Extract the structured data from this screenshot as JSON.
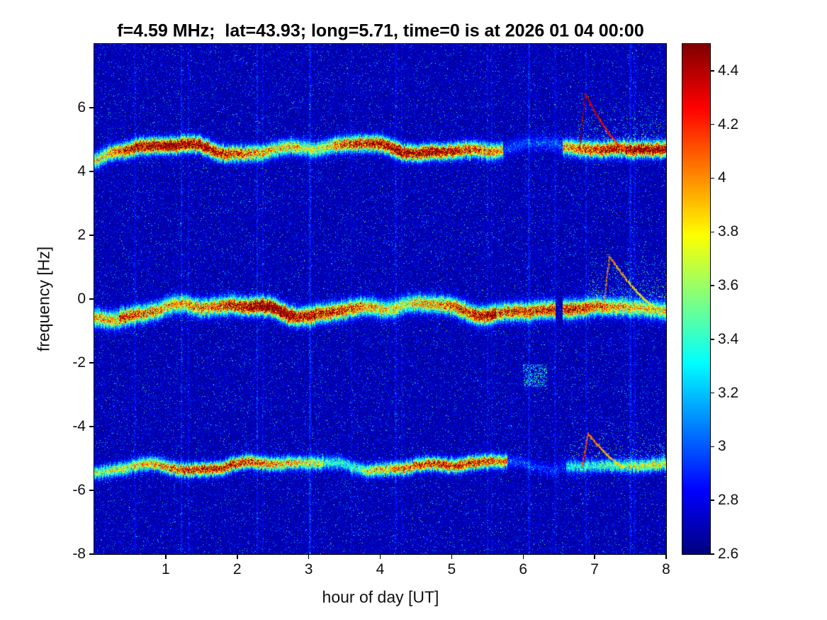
{
  "chart_data": {
    "type": "heatmap",
    "title": "f=4.59 MHz;  lat=43.93; long=5.71, time=0 is at 2026 01 04 00:00",
    "xlabel": "hour of day [UT]",
    "ylabel": "frequency [Hz]",
    "xlim": [
      0,
      8
    ],
    "ylim": [
      -8,
      8
    ],
    "grid": false,
    "xticks": {
      "values": [
        1,
        2,
        3,
        4,
        5,
        6,
        7,
        8
      ],
      "labels": [
        "1",
        "2",
        "3",
        "4",
        "5",
        "6",
        "7",
        "8"
      ]
    },
    "yticks": {
      "values": [
        6,
        4,
        2,
        0,
        -2,
        -4,
        -6,
        -8
      ],
      "labels": [
        "6",
        "4",
        "2",
        "0",
        "-2",
        "-4",
        "-6",
        "-8"
      ]
    },
    "colorbar": {
      "min": 2.6,
      "max": 4.5,
      "colormap": "jet",
      "position": "right",
      "tick_values": [
        4.4,
        4.2,
        4.0,
        3.8,
        3.6,
        3.4,
        3.2,
        3.0,
        2.8,
        2.6
      ],
      "tick_labels": [
        "4.4",
        "4.2",
        "4",
        "3.8",
        "3.6",
        "3.4",
        "3.2",
        "3",
        "2.8",
        "2.6"
      ]
    },
    "noise_floor": 2.62,
    "bands": [
      {
        "center": 4.72,
        "sigma": 0.15,
        "wiggle": 0.24,
        "start_dip": 0.45,
        "segments": [
          {
            "from": 0,
            "to": 0.4,
            "amp": 1.5
          },
          {
            "from": 0.4,
            "to": 2.9,
            "amp": 1.9
          },
          {
            "from": 2.9,
            "to": 3.35,
            "amp": 1.5
          },
          {
            "from": 3.35,
            "to": 5.72,
            "amp": 1.85
          },
          {
            "from": 5.72,
            "to": 6.55,
            "amp": 0.4
          },
          {
            "from": 6.55,
            "to": 8,
            "amp": 1.8
          }
        ],
        "plume": {
          "from": 6.75,
          "to": 8,
          "top": 6.4,
          "density": 0.5
        },
        "spike": {
          "t": 6.78,
          "top": 6.45,
          "tail": 0.55,
          "v": 4.35
        }
      },
      {
        "center": -0.32,
        "sigma": 0.17,
        "wiggle": 0.27,
        "start_dip": 0.2,
        "segments": [
          {
            "from": 0,
            "to": 0.35,
            "amp": 1.3
          },
          {
            "from": 0.35,
            "to": 2.8,
            "amp": 2.05
          },
          {
            "from": 2.8,
            "to": 4.45,
            "amp": 1.7
          },
          {
            "from": 4.45,
            "to": 5.62,
            "amp": 2.0
          },
          {
            "from": 5.62,
            "to": 6.45,
            "amp": 1.45
          },
          {
            "from": 6.55,
            "to": 8,
            "amp": 1.8
          }
        ],
        "plume": {
          "from": 6.9,
          "to": 8,
          "top": 1.9,
          "density": 0.55
        },
        "spike": {
          "t": 7.12,
          "top": 1.35,
          "tail": 0.65,
          "v": 3.95
        }
      },
      {
        "center": -5.22,
        "sigma": 0.13,
        "wiggle": 0.2,
        "start_dip": 0.35,
        "segments": [
          {
            "from": 0,
            "to": 3.2,
            "amp": 1.55
          },
          {
            "from": 3.2,
            "to": 3.75,
            "amp": 1.15
          },
          {
            "from": 3.75,
            "to": 5.78,
            "amp": 1.5
          },
          {
            "from": 5.78,
            "to": 6.6,
            "amp": 0.3
          },
          {
            "from": 6.6,
            "to": 8,
            "amp": 1.05
          }
        ],
        "plume": {
          "from": 6.65,
          "to": 8,
          "top": -3.55,
          "density": 0.4
        },
        "spike": {
          "t": 6.82,
          "top": -4.2,
          "tail": 0.5,
          "v": 4.05
        }
      }
    ],
    "vlines": [
      {
        "t": 0.57,
        "s": 0.1
      },
      {
        "t": 1.22,
        "s": 0.16
      },
      {
        "t": 1.32,
        "s": 0.1
      },
      {
        "t": 2.28,
        "s": 0.17
      },
      {
        "t": 2.36,
        "s": 0.1
      },
      {
        "t": 3.02,
        "s": 0.18
      },
      {
        "t": 3.6,
        "s": 0.08
      },
      {
        "t": 4.22,
        "s": 0.12
      },
      {
        "t": 4.3,
        "s": 0.08
      },
      {
        "t": 5.5,
        "s": 0.12
      },
      {
        "t": 5.56,
        "s": 0.09
      },
      {
        "t": 6.08,
        "s": 0.15
      },
      {
        "t": 6.45,
        "s": 0.1
      },
      {
        "t": 6.88,
        "s": 0.14
      },
      {
        "t": 7.5,
        "s": 0.16
      },
      {
        "t": 7.56,
        "s": 0.1
      }
    ],
    "patches": [
      {
        "x0": 6.0,
        "x1": 6.33,
        "y0": -2.75,
        "y1": -2.05,
        "p": 0.3,
        "vmin": 2.95,
        "vmax": 3.6
      }
    ]
  }
}
